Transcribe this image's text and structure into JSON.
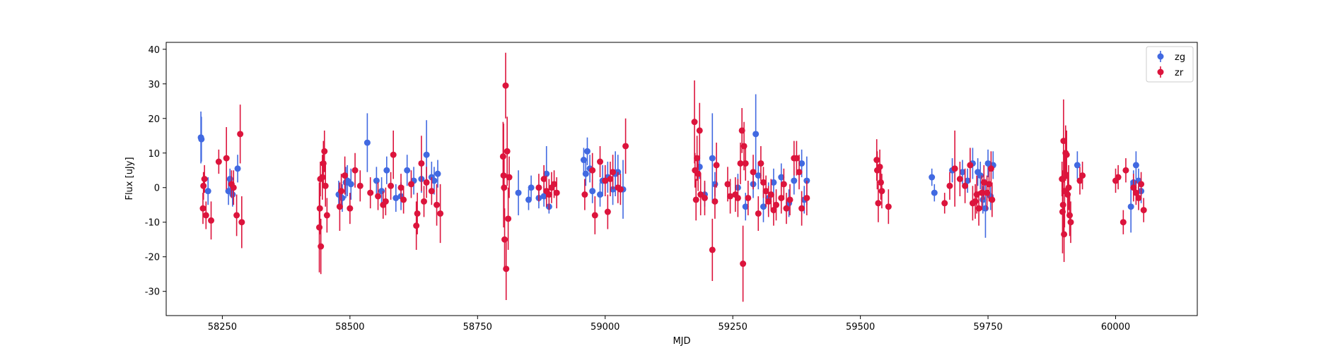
{
  "chart_data": {
    "type": "scatter",
    "title": "",
    "xlabel": "MJD",
    "ylabel": "Flux [uJy]",
    "xlim": [
      58140,
      60160
    ],
    "ylim": [
      -37,
      42
    ],
    "xticks": [
      58250,
      58500,
      58750,
      59000,
      59250,
      59500,
      59750,
      60000
    ],
    "yticks": [
      -30,
      -20,
      -10,
      0,
      10,
      20,
      30,
      40
    ],
    "grid": false,
    "legend": {
      "position": "top-right"
    },
    "series": [
      {
        "name": "zg",
        "color": "#4169e1",
        "points": [
          [
            58208,
            14.5,
            7.5
          ],
          [
            58209,
            14.0,
            6.5
          ],
          [
            58222,
            -1.0,
            4.0
          ],
          [
            58262,
            -1.0,
            4.0
          ],
          [
            58265,
            2.5,
            3.0
          ],
          [
            58270,
            -2.0,
            3.5
          ],
          [
            58280,
            5.5,
            4.0
          ],
          [
            58478,
            -2.0,
            4.0
          ],
          [
            58485,
            -3.0,
            4.0
          ],
          [
            58492,
            1.5,
            4.5
          ],
          [
            58495,
            2.0,
            4.5
          ],
          [
            58502,
            1.0,
            4.5
          ],
          [
            58534,
            13.0,
            8.5
          ],
          [
            58552,
            2.0,
            4.0
          ],
          [
            58562,
            -1.0,
            4.0
          ],
          [
            58572,
            5.0,
            4.0
          ],
          [
            58590,
            -3.0,
            4.0
          ],
          [
            58600,
            -2.5,
            4.0
          ],
          [
            58612,
            5.0,
            4.5
          ],
          [
            58625,
            2.0,
            4.0
          ],
          [
            58640,
            2.5,
            4.0
          ],
          [
            58650,
            9.5,
            10.0
          ],
          [
            58660,
            3.0,
            4.5
          ],
          [
            58665,
            2.0,
            4.0
          ],
          [
            58672,
            4.0,
            4.0
          ],
          [
            58830,
            -1.5,
            6.5
          ],
          [
            58850,
            -3.5,
            3.0
          ],
          [
            58855,
            0.0,
            3.5
          ],
          [
            58870,
            -3.0,
            3.0
          ],
          [
            58880,
            -2.5,
            3.0
          ],
          [
            58885,
            4.0,
            8.0
          ],
          [
            58890,
            -5.5,
            2.0
          ],
          [
            58958,
            8.0,
            3.5
          ],
          [
            58962,
            4.0,
            3.5
          ],
          [
            58965,
            10.5,
            4.0
          ],
          [
            58970,
            5.5,
            4.0
          ],
          [
            58975,
            -1.0,
            3.5
          ],
          [
            58990,
            -2.0,
            3.5
          ],
          [
            58995,
            2.0,
            4.5
          ],
          [
            59005,
            3.0,
            4.5
          ],
          [
            59015,
            -0.5,
            4.5
          ],
          [
            59020,
            4.0,
            6.5
          ],
          [
            59025,
            4.5,
            5.0
          ],
          [
            59035,
            -0.5,
            8.5
          ],
          [
            59210,
            8.5,
            13.0
          ],
          [
            59215,
            1.0,
            3.5
          ],
          [
            59195,
            -2.0,
            3.5
          ],
          [
            59185,
            6.0,
            3.5
          ],
          [
            59260,
            0.0,
            4.0
          ],
          [
            59275,
            -5.5,
            4.0
          ],
          [
            59290,
            1.0,
            4.0
          ],
          [
            59295,
            15.5,
            11.5
          ],
          [
            59300,
            3.5,
            4.0
          ],
          [
            59310,
            -5.5,
            4.5
          ],
          [
            59320,
            -3.0,
            4.5
          ],
          [
            59330,
            1.5,
            4.0
          ],
          [
            59345,
            3.0,
            4.0
          ],
          [
            59360,
            -4.5,
            4.0
          ],
          [
            59370,
            2.0,
            4.0
          ],
          [
            59385,
            7.0,
            4.0
          ],
          [
            59395,
            2.0,
            7.0
          ],
          [
            59390,
            -3.5,
            4.0
          ],
          [
            59640,
            3.0,
            2.5
          ],
          [
            59645,
            -1.5,
            2.5
          ],
          [
            59680,
            5.0,
            3.5
          ],
          [
            59700,
            4.5,
            3.5
          ],
          [
            59710,
            2.0,
            3.5
          ],
          [
            59720,
            7.0,
            4.5
          ],
          [
            59730,
            4.5,
            4.0
          ],
          [
            59735,
            3.5,
            4.0
          ],
          [
            59740,
            -3.5,
            4.0
          ],
          [
            59745,
            -6.0,
            8.5
          ],
          [
            59750,
            7.0,
            4.0
          ],
          [
            59755,
            -2.5,
            4.0
          ],
          [
            59760,
            6.5,
            4.0
          ],
          [
            59925,
            6.5,
            4.0
          ],
          [
            60030,
            -5.5,
            7.5
          ],
          [
            60035,
            1.5,
            3.5
          ],
          [
            60040,
            6.5,
            4.0
          ],
          [
            60045,
            2.0,
            3.5
          ],
          [
            60050,
            -1.0,
            3.5
          ]
        ]
      },
      {
        "name": "zr",
        "color": "#dc143c",
        "points": [
          [
            58212,
            -6.0,
            4.5
          ],
          [
            58213,
            0.5,
            4.0
          ],
          [
            58215,
            2.5,
            4.0
          ],
          [
            58218,
            -8.0,
            4.0
          ],
          [
            58228,
            -9.5,
            5.5
          ],
          [
            58243,
            7.5,
            3.5
          ],
          [
            58258,
            8.5,
            9.0
          ],
          [
            58268,
            1.0,
            4.0
          ],
          [
            58272,
            0.0,
            5.0
          ],
          [
            58278,
            -8.0,
            6.0
          ],
          [
            58285,
            15.5,
            8.5
          ],
          [
            58288,
            -10.0,
            7.5
          ],
          [
            58440,
            -11.5,
            13.0
          ],
          [
            58441,
            -6.0,
            7.5
          ],
          [
            58442,
            2.5,
            5.0
          ],
          [
            58443,
            -17.0,
            8.0
          ],
          [
            58446,
            3.0,
            6.5
          ],
          [
            58448,
            7.0,
            6.5
          ],
          [
            58450,
            10.5,
            6.0
          ],
          [
            58452,
            0.5,
            6.0
          ],
          [
            58455,
            -8.0,
            5.0
          ],
          [
            58480,
            -5.5,
            7.0
          ],
          [
            58483,
            -1.0,
            5.0
          ],
          [
            58490,
            3.5,
            5.5
          ],
          [
            58500,
            -6.0,
            4.5
          ],
          [
            58510,
            5.0,
            5.0
          ],
          [
            58520,
            0.5,
            4.5
          ],
          [
            58540,
            -1.5,
            4.5
          ],
          [
            58555,
            -2.5,
            4.0
          ],
          [
            58565,
            -5.0,
            4.0
          ],
          [
            58570,
            -4.0,
            4.0
          ],
          [
            58580,
            0.5,
            4.0
          ],
          [
            58585,
            9.5,
            7.0
          ],
          [
            58600,
            0.0,
            4.0
          ],
          [
            58605,
            -3.5,
            4.0
          ],
          [
            58620,
            1.0,
            4.0
          ],
          [
            58630,
            -11.0,
            7.0
          ],
          [
            58632,
            -7.5,
            6.0
          ],
          [
            58640,
            7.0,
            8.0
          ],
          [
            58645,
            -4.0,
            4.5
          ],
          [
            58650,
            1.5,
            4.5
          ],
          [
            58660,
            -1.0,
            4.0
          ],
          [
            58670,
            -5.0,
            6.0
          ],
          [
            58677,
            -7.5,
            8.5
          ],
          [
            58800,
            9.0,
            10.0
          ],
          [
            58801,
            3.5,
            15.0
          ],
          [
            58802,
            0.0,
            9.0
          ],
          [
            58803,
            -15.0,
            9.0
          ],
          [
            58805,
            29.5,
            9.5
          ],
          [
            58806,
            -23.5,
            9.0
          ],
          [
            58808,
            10.5,
            10.0
          ],
          [
            58810,
            -9.0,
            9.0
          ],
          [
            58812,
            3.0,
            6.0
          ],
          [
            58870,
            0.0,
            4.0
          ],
          [
            58880,
            2.5,
            4.0
          ],
          [
            58885,
            -1.0,
            4.5
          ],
          [
            58890,
            -2.0,
            4.5
          ],
          [
            58895,
            0.0,
            4.5
          ],
          [
            58900,
            1.0,
            4.0
          ],
          [
            58905,
            -1.5,
            4.5
          ],
          [
            58960,
            -2.0,
            4.5
          ],
          [
            58975,
            5.0,
            5.0
          ],
          [
            58980,
            -8.0,
            5.5
          ],
          [
            58990,
            7.5,
            4.5
          ],
          [
            59000,
            2.0,
            4.5
          ],
          [
            59005,
            -7.0,
            5.0
          ],
          [
            59010,
            2.5,
            5.0
          ],
          [
            59015,
            4.5,
            5.0
          ],
          [
            59025,
            0.0,
            4.5
          ],
          [
            59030,
            -0.5,
            4.5
          ],
          [
            59040,
            12.0,
            8.0
          ],
          [
            59175,
            19.0,
            12.0
          ],
          [
            59176,
            5.0,
            5.0
          ],
          [
            59178,
            -3.5,
            6.0
          ],
          [
            59180,
            8.5,
            6.5
          ],
          [
            59182,
            4.0,
            5.0
          ],
          [
            59185,
            16.5,
            8.0
          ],
          [
            59187,
            -2.0,
            6.0
          ],
          [
            59195,
            -3.0,
            5.0
          ],
          [
            59210,
            -18.0,
            9.0
          ],
          [
            59215,
            -4.0,
            5.0
          ],
          [
            59218,
            6.5,
            6.5
          ],
          [
            59240,
            1.0,
            5.0
          ],
          [
            59245,
            -2.5,
            5.0
          ],
          [
            59255,
            -2.0,
            5.0
          ],
          [
            59260,
            -3.0,
            5.5
          ],
          [
            59265,
            7.0,
            6.0
          ],
          [
            59268,
            16.5,
            6.5
          ],
          [
            59270,
            -22.0,
            11.0
          ],
          [
            59272,
            12.0,
            7.0
          ],
          [
            59275,
            7.0,
            5.0
          ],
          [
            59280,
            -3.0,
            5.0
          ],
          [
            59290,
            4.5,
            5.0
          ],
          [
            59300,
            -7.5,
            5.0
          ],
          [
            59305,
            7.0,
            5.0
          ],
          [
            59310,
            1.5,
            4.5
          ],
          [
            59315,
            -1.0,
            4.5
          ],
          [
            59320,
            -4.0,
            4.5
          ],
          [
            59325,
            -2.0,
            4.5
          ],
          [
            59330,
            -6.5,
            4.5
          ],
          [
            59335,
            -5.0,
            4.5
          ],
          [
            59345,
            -3.0,
            4.5
          ],
          [
            59350,
            1.0,
            4.5
          ],
          [
            59355,
            -6.0,
            4.5
          ],
          [
            59362,
            -3.5,
            4.5
          ],
          [
            59370,
            8.5,
            5.0
          ],
          [
            59375,
            8.5,
            5.0
          ],
          [
            59380,
            4.5,
            5.0
          ],
          [
            59385,
            -6.0,
            5.0
          ],
          [
            59395,
            -3.0,
            5.0
          ],
          [
            59532,
            8.0,
            6.0
          ],
          [
            59533,
            5.0,
            5.5
          ],
          [
            59535,
            -4.5,
            5.5
          ],
          [
            59538,
            6.0,
            5.0
          ],
          [
            59540,
            1.5,
            5.0
          ],
          [
            59542,
            -1.0,
            5.0
          ],
          [
            59555,
            -5.5,
            5.0
          ],
          [
            59665,
            -4.5,
            3.0
          ],
          [
            59675,
            0.5,
            4.0
          ],
          [
            59685,
            5.5,
            11.0
          ],
          [
            59695,
            2.5,
            5.0
          ],
          [
            59705,
            0.5,
            5.0
          ],
          [
            59715,
            6.5,
            5.0
          ],
          [
            59720,
            -4.5,
            5.0
          ],
          [
            59725,
            -4.0,
            5.0
          ],
          [
            59728,
            -2.0,
            5.5
          ],
          [
            59732,
            -6.0,
            5.0
          ],
          [
            59738,
            -1.5,
            5.0
          ],
          [
            59742,
            1.5,
            5.0
          ],
          [
            59748,
            -1.5,
            5.0
          ],
          [
            59752,
            1.0,
            5.0
          ],
          [
            59756,
            5.5,
            5.0
          ],
          [
            59758,
            -3.5,
            5.0
          ],
          [
            59895,
            2.5,
            5.0
          ],
          [
            59896,
            -7.0,
            12.0
          ],
          [
            59897,
            -5.0,
            8.0
          ],
          [
            59898,
            13.5,
            12.0
          ],
          [
            59899,
            -13.5,
            8.0
          ],
          [
            59900,
            -1.0,
            10.5
          ],
          [
            59902,
            10.0,
            8.0
          ],
          [
            59904,
            9.5,
            7.0
          ],
          [
            59906,
            -2.0,
            6.5
          ],
          [
            59908,
            0.0,
            6.5
          ],
          [
            59910,
            -8.0,
            6.0
          ],
          [
            59912,
            -10.0,
            6.0
          ],
          [
            59930,
            2.0,
            4.0
          ],
          [
            59935,
            3.5,
            4.0
          ],
          [
            60000,
            2.0,
            3.5
          ],
          [
            60005,
            3.0,
            3.5
          ],
          [
            60015,
            -10.0,
            3.5
          ],
          [
            60020,
            5.0,
            3.5
          ],
          [
            60035,
            0.0,
            4.0
          ],
          [
            60040,
            -1.5,
            3.5
          ],
          [
            60045,
            -3.0,
            3.5
          ],
          [
            60050,
            1.0,
            3.5
          ],
          [
            60055,
            -6.5,
            3.5
          ]
        ]
      }
    ]
  }
}
